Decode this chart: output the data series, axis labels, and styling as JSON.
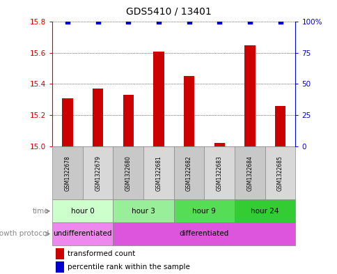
{
  "title": "GDS5410 / 13401",
  "samples": [
    "GSM1322678",
    "GSM1322679",
    "GSM1322680",
    "GSM1322681",
    "GSM1322682",
    "GSM1322683",
    "GSM1322684",
    "GSM1322685"
  ],
  "transformed_count": [
    15.31,
    15.37,
    15.33,
    15.61,
    15.45,
    15.02,
    15.65,
    15.26
  ],
  "percentile_rank": [
    100,
    100,
    100,
    100,
    100,
    100,
    100,
    100
  ],
  "ylim_left": [
    15.0,
    15.8
  ],
  "ylim_right": [
    0,
    100
  ],
  "yticks_left": [
    15.0,
    15.2,
    15.4,
    15.6,
    15.8
  ],
  "yticks_right": [
    0,
    25,
    50,
    75,
    100
  ],
  "ytick_labels_right": [
    "0",
    "25",
    "50",
    "75",
    "100%"
  ],
  "bar_color": "#cc0000",
  "dot_color": "#0000cc",
  "time_groups": [
    {
      "label": "hour 0",
      "start": 0,
      "end": 2,
      "color": "#ccffcc"
    },
    {
      "label": "hour 3",
      "start": 2,
      "end": 4,
      "color": "#99ee99"
    },
    {
      "label": "hour 9",
      "start": 4,
      "end": 6,
      "color": "#55dd55"
    },
    {
      "label": "hour 24",
      "start": 6,
      "end": 8,
      "color": "#33cc33"
    }
  ],
  "protocol_groups": [
    {
      "label": "undifferentiated",
      "start": 0,
      "end": 2,
      "color": "#ee88ee"
    },
    {
      "label": "differentiated",
      "start": 2,
      "end": 8,
      "color": "#dd55dd"
    }
  ],
  "time_label": "time",
  "protocol_label": "growth protocol",
  "legend_items": [
    {
      "label": "transformed count",
      "color": "#cc0000"
    },
    {
      "label": "percentile rank within the sample",
      "color": "#0000cc"
    }
  ],
  "sample_box_colors": [
    "#c8c8c8",
    "#d8d8d8",
    "#c8c8c8",
    "#d8d8d8",
    "#c8c8c8",
    "#d8d8d8",
    "#c8c8c8",
    "#d8d8d8"
  ],
  "left_axis_color": "#cc0000",
  "right_axis_color": "#0000cc",
  "grid_color": "#000000"
}
